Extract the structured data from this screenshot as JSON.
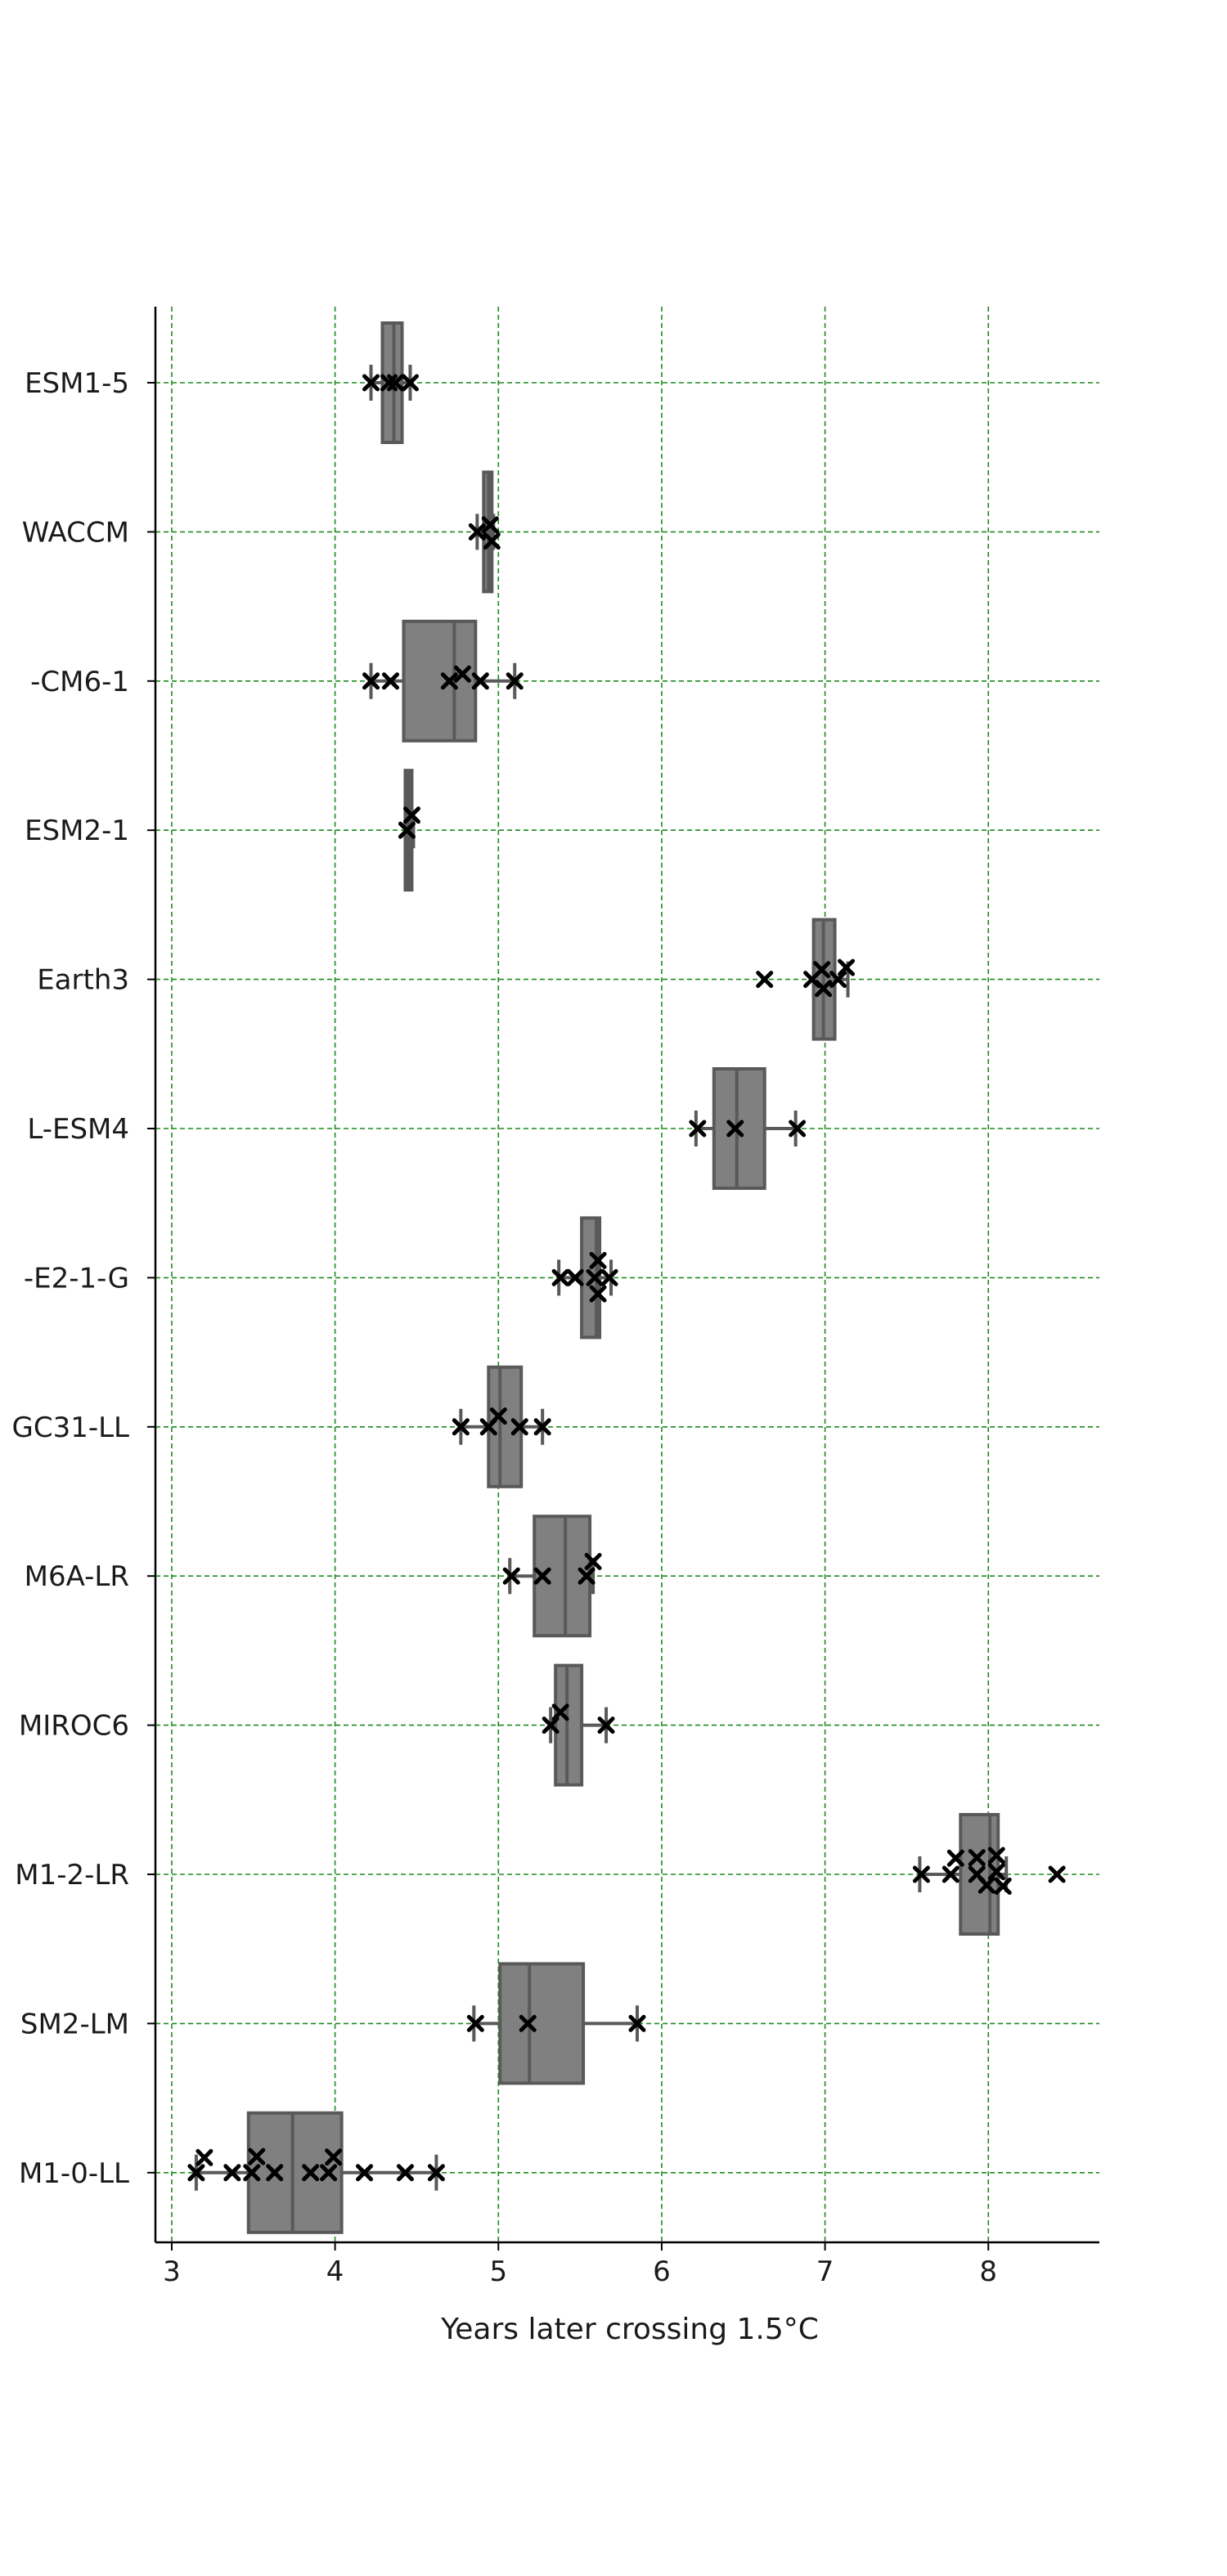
{
  "chart_data": {
    "type": "boxplot",
    "orientation": "horizontal",
    "xlabel": "Years later crossing 1.5°C",
    "ylabel": "",
    "xlim": [
      2.9,
      8.68
    ],
    "xticks": [
      3,
      4,
      5,
      6,
      7,
      8
    ],
    "grid": true,
    "categories": [
      {
        "label": "ESM1-5",
        "q1": 4.29,
        "median": 4.36,
        "q3": 4.41,
        "whisker_low": 4.22,
        "whisker_high": 4.46,
        "points": [
          [
            4.22,
            0
          ],
          [
            4.33,
            0
          ],
          [
            4.37,
            0
          ],
          [
            4.46,
            0
          ]
        ]
      },
      {
        "label": "WACCM",
        "q1": 4.91,
        "median": 4.94,
        "q3": 4.96,
        "whisker_low": 4.87,
        "whisker_high": 4.97,
        "points": [
          [
            4.95,
            -0.13
          ],
          [
            4.87,
            0
          ],
          [
            4.96,
            0.17
          ]
        ]
      },
      {
        "label": "-CM6-1",
        "q1": 4.42,
        "median": 4.73,
        "q3": 4.86,
        "whisker_low": 4.22,
        "whisker_high": 5.1,
        "points": [
          [
            4.78,
            -0.13
          ],
          [
            4.22,
            0
          ],
          [
            4.34,
            0
          ],
          [
            4.7,
            0
          ],
          [
            4.89,
            0
          ],
          [
            5.1,
            0
          ]
        ]
      },
      {
        "label": "ESM2-1",
        "q1": 4.43,
        "median": 4.45,
        "q3": 4.47,
        "whisker_low": 4.43,
        "whisker_high": 4.48,
        "points": [
          [
            4.47,
            -0.28
          ],
          [
            4.44,
            0
          ]
        ]
      },
      {
        "label": "Earth3",
        "q1": 6.93,
        "median": 6.99,
        "q3": 7.06,
        "whisker_low": 6.93,
        "whisker_high": 7.14,
        "points": [
          [
            7.13,
            -0.22
          ],
          [
            6.98,
            -0.18
          ],
          [
            6.63,
            0
          ],
          [
            6.92,
            0
          ],
          [
            7.08,
            0
          ],
          [
            6.99,
            0.17
          ]
        ]
      },
      {
        "label": "L-ESM4",
        "q1": 6.32,
        "median": 6.46,
        "q3": 6.63,
        "whisker_low": 6.21,
        "whisker_high": 6.82,
        "points": [
          [
            6.22,
            0
          ],
          [
            6.45,
            0
          ],
          [
            6.83,
            0
          ]
        ]
      },
      {
        "label": "-E2-1-G",
        "q1": 5.51,
        "median": 5.6,
        "q3": 5.62,
        "whisker_low": 5.37,
        "whisker_high": 5.69,
        "points": [
          [
            5.61,
            -0.32
          ],
          [
            5.38,
            0
          ],
          [
            5.47,
            0
          ],
          [
            5.59,
            0
          ],
          [
            5.68,
            0
          ],
          [
            5.61,
            0.3
          ]
        ]
      },
      {
        "label": "GC31-LL",
        "q1": 4.94,
        "median": 5.01,
        "q3": 5.14,
        "whisker_low": 4.77,
        "whisker_high": 5.27,
        "points": [
          [
            5.0,
            -0.2
          ],
          [
            4.77,
            0
          ],
          [
            4.94,
            0
          ],
          [
            5.13,
            0
          ],
          [
            5.27,
            0
          ]
        ]
      },
      {
        "label": "M6A-LR",
        "q1": 5.22,
        "median": 5.41,
        "q3": 5.56,
        "whisker_low": 5.07,
        "whisker_high": 5.58,
        "points": [
          [
            5.58,
            -0.27
          ],
          [
            5.08,
            0
          ],
          [
            5.27,
            0
          ],
          [
            5.54,
            0
          ]
        ]
      },
      {
        "label": "MIROC6",
        "q1": 5.35,
        "median": 5.42,
        "q3": 5.51,
        "whisker_low": 5.32,
        "whisker_high": 5.66,
        "points": [
          [
            5.38,
            -0.24
          ],
          [
            5.32,
            0
          ],
          [
            5.66,
            0
          ]
        ]
      },
      {
        "label": "M1-2-LR",
        "q1": 7.83,
        "median": 8.01,
        "q3": 8.06,
        "whisker_low": 7.58,
        "whisker_high": 8.11,
        "points": [
          [
            8.05,
            -0.35
          ],
          [
            7.8,
            -0.3
          ],
          [
            7.93,
            -0.31
          ],
          [
            8.05,
            -0.05
          ],
          [
            7.59,
            0
          ],
          [
            7.77,
            0
          ],
          [
            7.93,
            0
          ],
          [
            8.42,
            0
          ],
          [
            7.99,
            0.2
          ],
          [
            8.09,
            0.22
          ]
        ]
      },
      {
        "label": "SM2-LM",
        "q1": 5.01,
        "median": 5.19,
        "q3": 5.52,
        "whisker_low": 4.85,
        "whisker_high": 5.85,
        "points": [
          [
            4.86,
            0
          ],
          [
            5.18,
            0
          ],
          [
            5.85,
            0
          ]
        ]
      },
      {
        "label": "M1-0-LL",
        "q1": 3.47,
        "median": 3.74,
        "q3": 4.04,
        "whisker_low": 3.15,
        "whisker_high": 4.62,
        "points": [
          [
            3.2,
            -0.28
          ],
          [
            3.52,
            -0.3
          ],
          [
            3.99,
            -0.29
          ],
          [
            3.15,
            0
          ],
          [
            3.37,
            0
          ],
          [
            3.49,
            0
          ],
          [
            3.63,
            0
          ],
          [
            3.85,
            0
          ],
          [
            3.96,
            0
          ],
          [
            4.18,
            0
          ],
          [
            4.43,
            0
          ],
          [
            4.62,
            0
          ]
        ]
      }
    ],
    "colors": {
      "box_fill": "#808080",
      "box_edge": "#595959",
      "marker": "#000000",
      "grid": "#1f8a1f",
      "axis": "#000000"
    }
  }
}
